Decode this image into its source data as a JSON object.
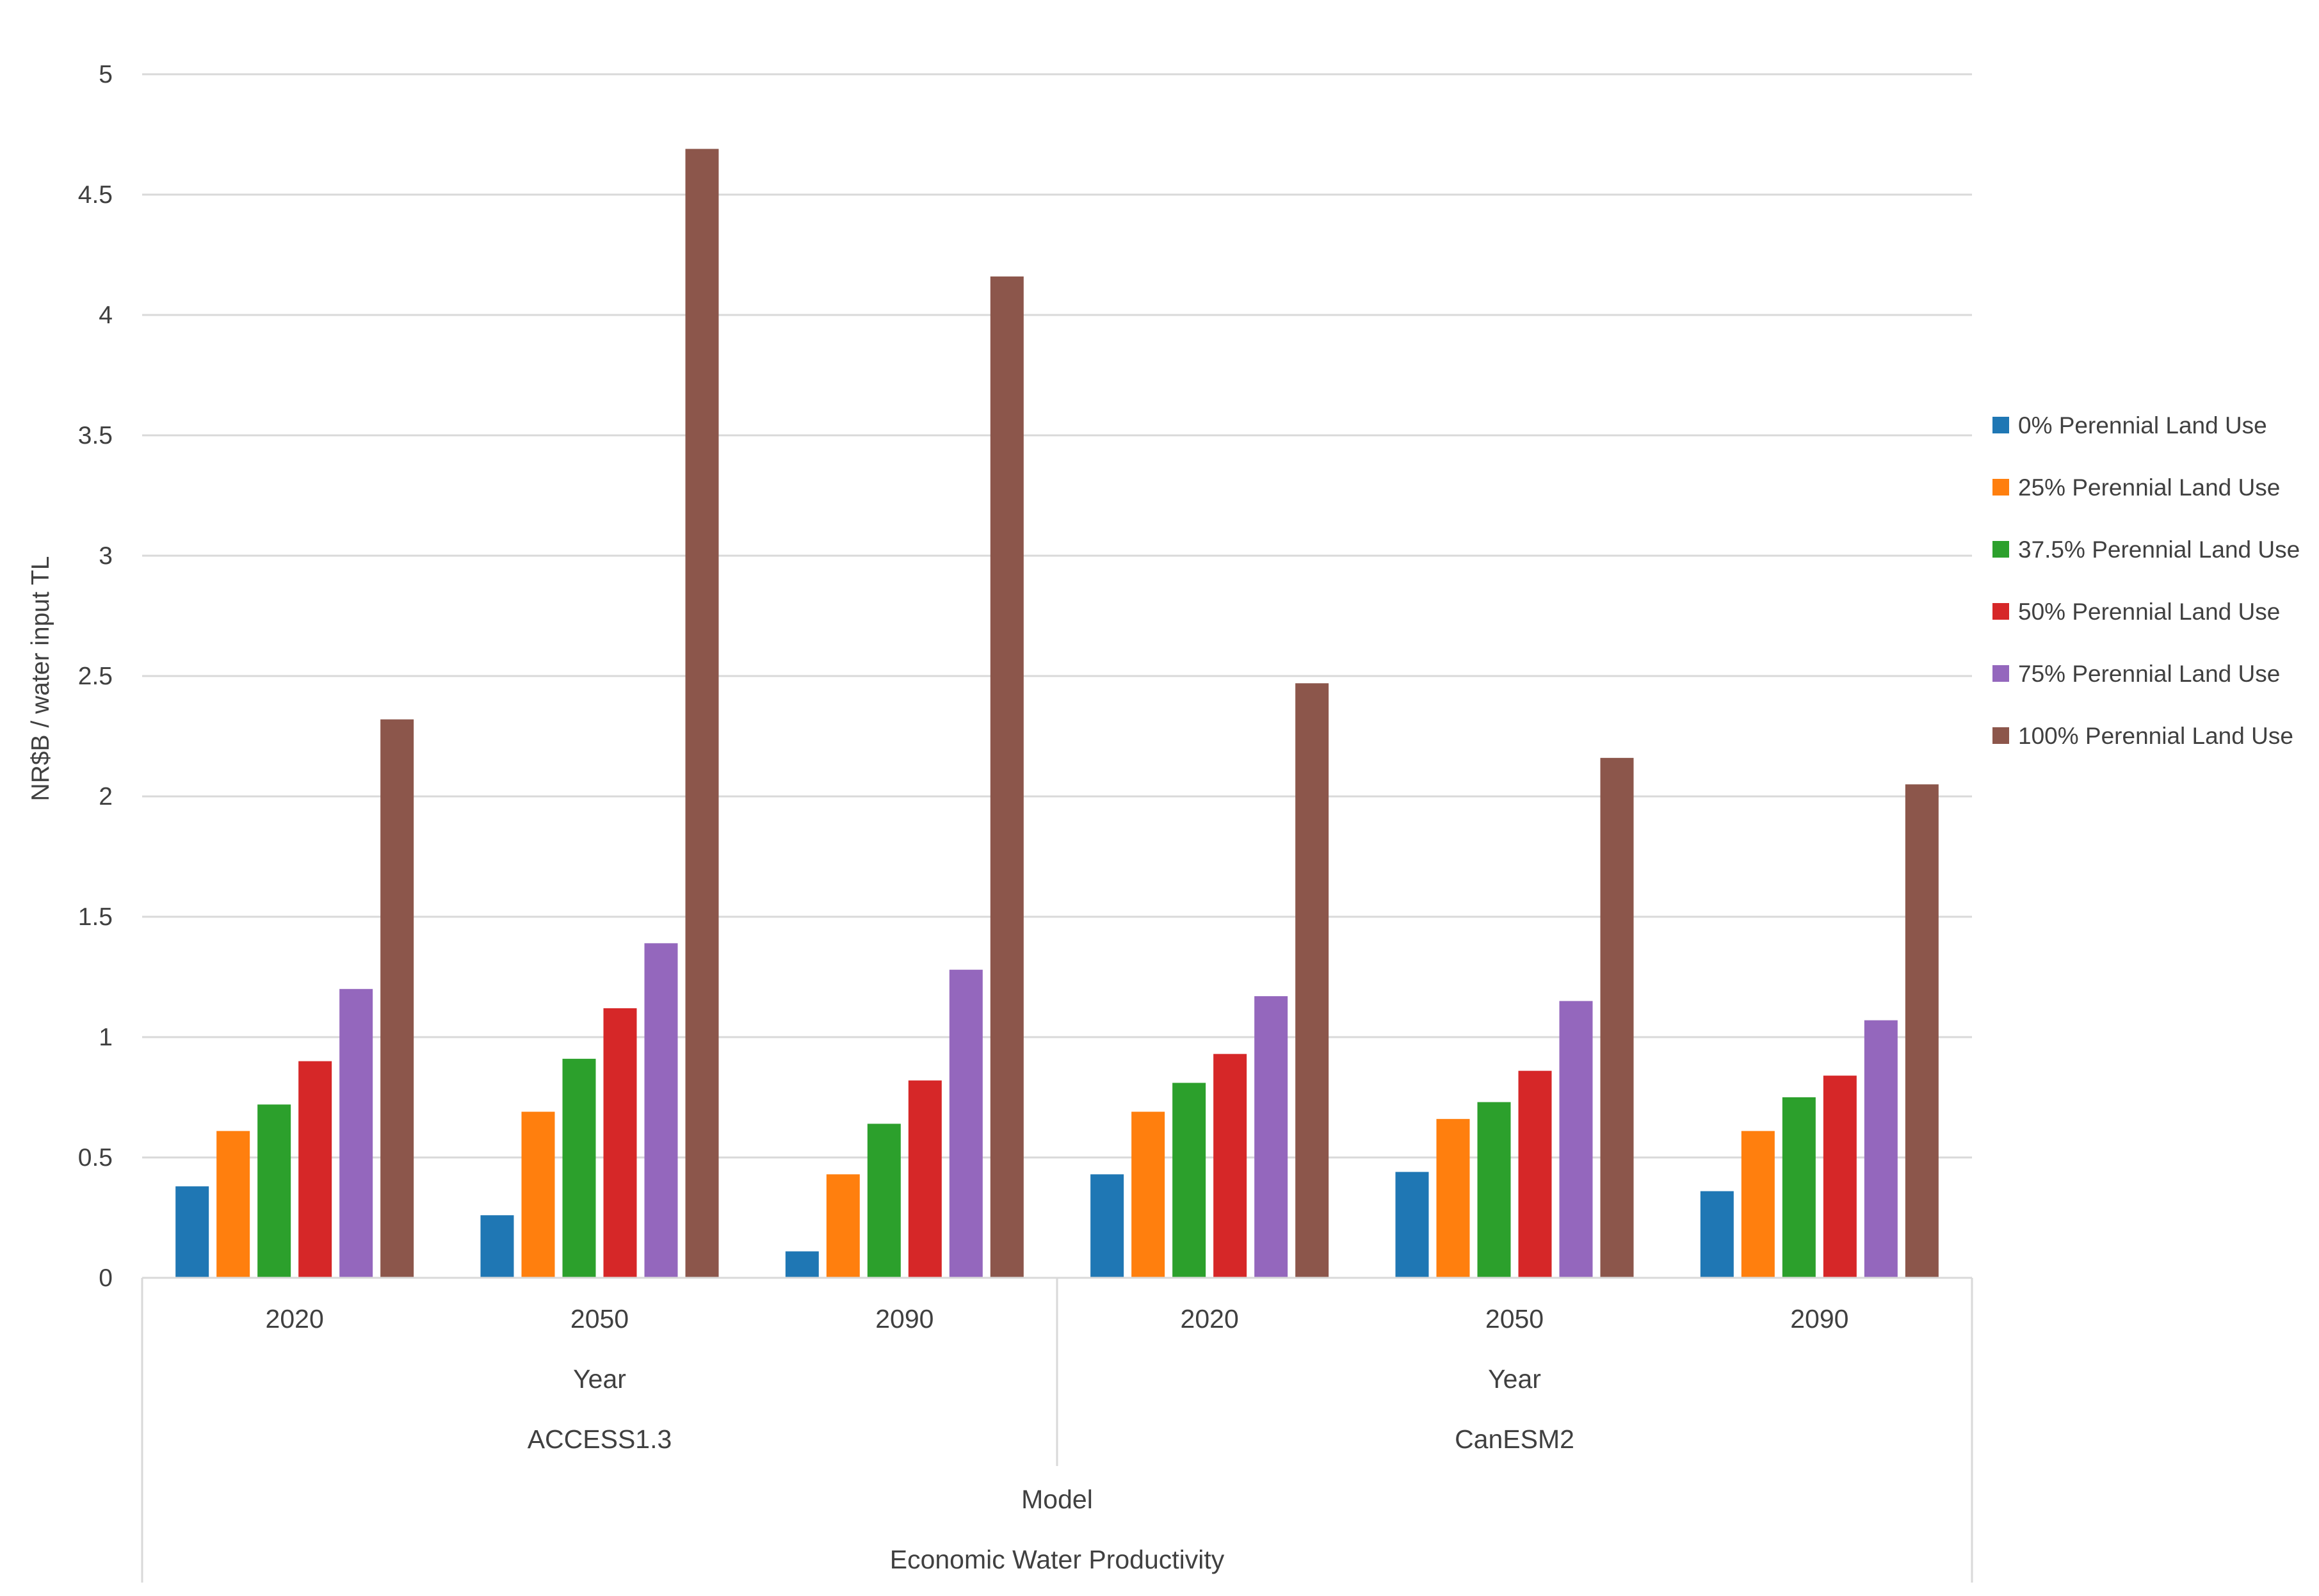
{
  "chart_data": {
    "type": "bar",
    "ylabel": "NR$B / water input TL",
    "ylim": [
      0,
      5
    ],
    "yticks": [
      0,
      0.5,
      1,
      1.5,
      2,
      2.5,
      3,
      3.5,
      4,
      4.5,
      5
    ],
    "ytick_labels": [
      "0",
      "0.5",
      "1",
      "1.5",
      "2",
      "2.5",
      "3",
      "3.5",
      "4",
      "4.5",
      "5"
    ],
    "grid": true,
    "legend_position": "right",
    "x_levels": {
      "year_title": "Year",
      "model_title": "Model",
      "outer_title": "Economic Water Productivity"
    },
    "groups": [
      {
        "model": "ACCESS1.3",
        "years": [
          "2020",
          "2050",
          "2090"
        ]
      },
      {
        "model": "CanESM2",
        "years": [
          "2020",
          "2050",
          "2090"
        ]
      }
    ],
    "categories": [
      "2020",
      "2050",
      "2090",
      "2020",
      "2050",
      "2090"
    ],
    "series": [
      {
        "name": "0% Perennial Land Use",
        "color": "#1f77b4",
        "values": [
          0.38,
          0.26,
          0.11,
          0.43,
          0.44,
          0.36
        ]
      },
      {
        "name": "25% Perennial Land Use",
        "color": "#ff7f0e",
        "values": [
          0.61,
          0.69,
          0.43,
          0.69,
          0.66,
          0.61
        ]
      },
      {
        "name": "37.5% Perennial Land Use",
        "color": "#2ca02c",
        "values": [
          0.72,
          0.91,
          0.64,
          0.81,
          0.73,
          0.75
        ]
      },
      {
        "name": "50% Perennial Land Use",
        "color": "#d62728",
        "values": [
          0.9,
          1.12,
          0.82,
          0.93,
          0.86,
          0.84
        ]
      },
      {
        "name": "75% Perennial Land Use",
        "color": "#9467bd",
        "values": [
          1.2,
          1.39,
          1.28,
          1.17,
          1.15,
          1.07
        ]
      },
      {
        "name": "100% Perennial Land Use",
        "color": "#8c564b",
        "values": [
          2.32,
          4.69,
          4.16,
          2.47,
          2.16,
          2.05
        ]
      }
    ]
  }
}
